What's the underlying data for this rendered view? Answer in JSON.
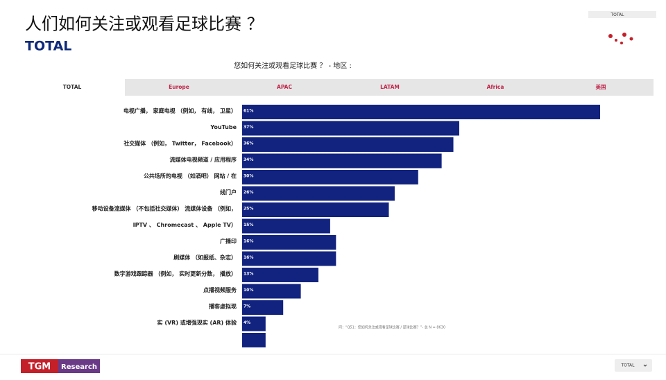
{
  "header": {
    "title": "人们如何关注或观看足球比赛 ？",
    "subtitle": "TOTAL",
    "badge": "TOTAL"
  },
  "tabs": [
    "TOTAL",
    "Europe",
    "APAC",
    "LATAM",
    "Africa",
    "美国"
  ],
  "chart_data": {
    "type": "bar",
    "orientation": "horizontal",
    "title": "您如何关注或观看足球比赛 ？ - 地区 :",
    "categories": [
      "电视广播， 家庭电视 （例如， 有线， 卫星）",
      "YouTube",
      "社交媒体 （例如， Twitter， Facebook）",
      "流媒体电视频道 / 应用程序",
      "公共场所的电视 （如酒吧） 网站 / 在",
      "线门户",
      "移动设备流媒体 （不包括社交媒体） 流媒体设备 （例如，",
      "IPTV 、 Chromecast 、 Apple TV）",
      "广播印",
      "刷媒体 （如报纸、杂志）",
      "数字游戏跟踪器 （例如， 实时更新分数， 播放）",
      "点播视频服务",
      "播客虚拟现",
      "实 (VR) 或增强现实 (AR) 体验",
      null
    ],
    "values": [
      61,
      37,
      36,
      34,
      30,
      26,
      25,
      15,
      16,
      16,
      13,
      10,
      7,
      4,
      4
    ],
    "value_labels": [
      "61%",
      "37%",
      "36%",
      "34%",
      "30%",
      "26%",
      "25%",
      "15%",
      "16%",
      "16%",
      "13%",
      "10%",
      "7%",
      "4%",
      null
    ],
    "color": "#12237f",
    "xlim": [
      0,
      61
    ],
    "note": "问：“Q51：您如何关注或观看足球比赛 / 足球比赛？”- 总 N = 8630"
  },
  "footer": {
    "logo_a": "TGM",
    "logo_b": "Research",
    "dropdown": "TOTAL"
  }
}
